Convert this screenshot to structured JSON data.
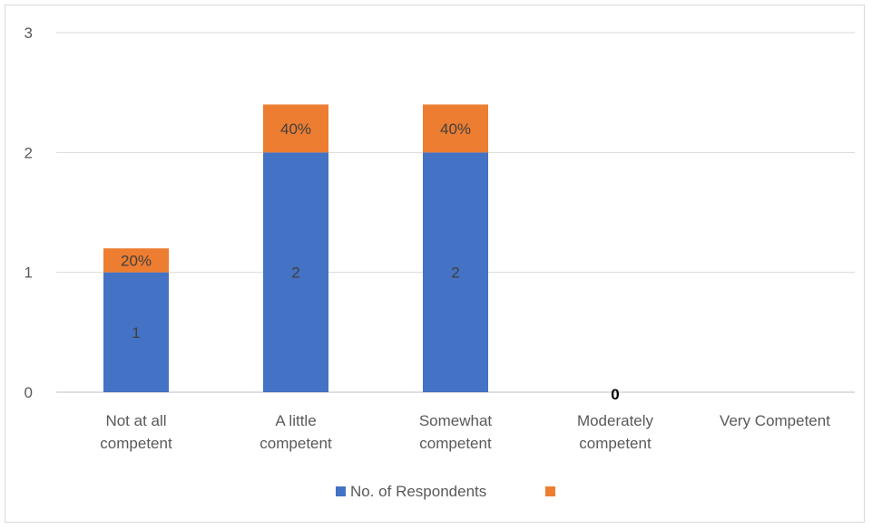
{
  "chart_data": {
    "type": "bar",
    "stacked": true,
    "categories": [
      "Not at all competent",
      "A little competent",
      "Somewhat competent",
      "Moderately competent",
      "Very Competent"
    ],
    "category_label_lines": [
      [
        "Not at all",
        "competent"
      ],
      [
        "A little",
        "competent"
      ],
      [
        "Somewhat",
        "competent"
      ],
      [
        "Moderately",
        "competent"
      ],
      [
        "Very Competent"
      ]
    ],
    "series": [
      {
        "name": "No. of Respondents",
        "values": [
          1,
          2,
          2,
          0,
          0
        ],
        "color": "#4472c4",
        "data_labels": [
          "1",
          "2",
          "2",
          "0",
          ""
        ]
      },
      {
        "name": "",
        "values": [
          0.2,
          0.4,
          0.4,
          0,
          0
        ],
        "color": "#ed7d31",
        "data_labels": [
          "20%",
          "40%",
          "40%",
          "",
          ""
        ]
      }
    ],
    "yticks": [
      "0",
      "1",
      "2",
      "3"
    ],
    "ylim": [
      0,
      3
    ],
    "grid": true,
    "legend_position": "bottom",
    "title": "",
    "xlabel": "",
    "ylabel": ""
  }
}
